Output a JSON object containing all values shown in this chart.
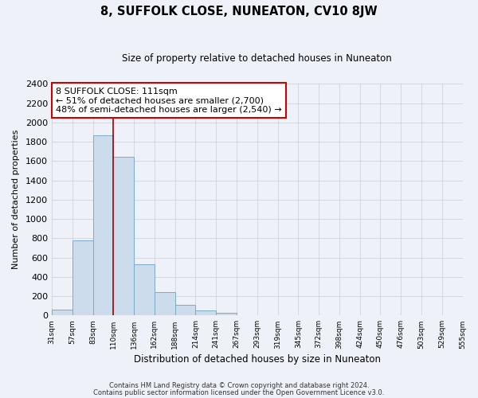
{
  "title": "8, SUFFOLK CLOSE, NUNEATON, CV10 8JW",
  "subtitle": "Size of property relative to detached houses in Nuneaton",
  "xlabel": "Distribution of detached houses by size in Nuneaton",
  "ylabel": "Number of detached properties",
  "bin_labels": [
    "31sqm",
    "57sqm",
    "83sqm",
    "110sqm",
    "136sqm",
    "162sqm",
    "188sqm",
    "214sqm",
    "241sqm",
    "267sqm",
    "293sqm",
    "319sqm",
    "345sqm",
    "372sqm",
    "398sqm",
    "424sqm",
    "450sqm",
    "476sqm",
    "503sqm",
    "529sqm",
    "555sqm"
  ],
  "bar_heights": [
    60,
    780,
    1870,
    1640,
    530,
    240,
    110,
    55,
    30,
    0,
    0,
    0,
    0,
    0,
    0,
    0,
    0,
    0,
    0,
    0
  ],
  "bar_color": "#ccdcec",
  "bar_edgecolor": "#7aaac8",
  "vline_x_index": 3,
  "vline_color": "#aa0000",
  "annotation_title": "8 SUFFOLK CLOSE: 111sqm",
  "annotation_line1": "← 51% of detached houses are smaller (2,700)",
  "annotation_line2": "48% of semi-detached houses are larger (2,540) →",
  "annotation_box_edgecolor": "#cc0000",
  "annotation_box_facecolor": "#ffffff",
  "ylim": [
    0,
    2400
  ],
  "yticks": [
    0,
    200,
    400,
    600,
    800,
    1000,
    1200,
    1400,
    1600,
    1800,
    2000,
    2200,
    2400
  ],
  "footer_line1": "Contains HM Land Registry data © Crown copyright and database right 2024.",
  "footer_line2": "Contains public sector information licensed under the Open Government Licence v3.0.",
  "background_color": "#eef2f8",
  "plot_background_color": "#eef2f8",
  "grid_color": "#c8cdd8"
}
